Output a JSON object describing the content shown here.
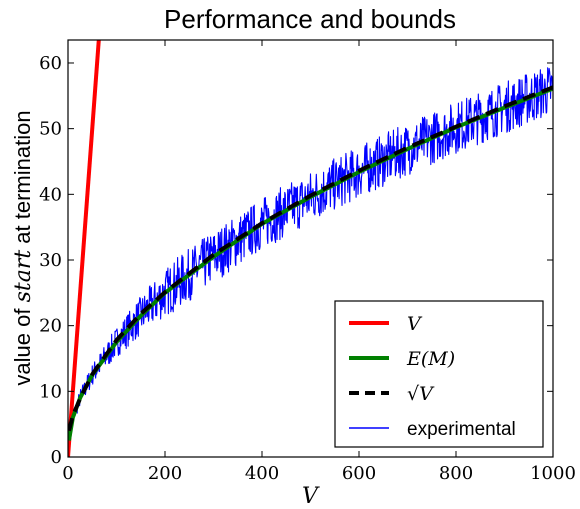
{
  "chart_data": {
    "type": "line",
    "title": "Performance and bounds",
    "xlabel": "V",
    "ylabel_prefix": "value of ",
    "ylabel_math": "start",
    "ylabel_suffix": " at termination",
    "xlim": [
      0,
      1000
    ],
    "ylim": [
      0,
      63.5
    ],
    "xticks": [
      0,
      200,
      400,
      600,
      800,
      1000
    ],
    "yticks": [
      0,
      10,
      20,
      30,
      40,
      50,
      60
    ],
    "grid": false,
    "legend_position": "lower-right",
    "series": [
      {
        "name": "V",
        "style": "solid",
        "color": "#ff0000",
        "x": [
          0,
          64
        ],
        "y": [
          0,
          64
        ]
      },
      {
        "name": "E(M)",
        "style": "solid",
        "color": "#008000",
        "x": [
          2,
          10,
          25,
          50,
          100,
          150,
          200,
          300,
          400,
          500,
          600,
          700,
          800,
          900,
          1000
        ],
        "y": [
          2.5,
          6,
          9,
          12.5,
          17.5,
          21.5,
          25,
          30.5,
          35.5,
          39.6,
          43.4,
          46.9,
          50.2,
          53.2,
          56.1
        ]
      },
      {
        "name": "√V",
        "style": "dashed",
        "color": "#000000",
        "x": [
          2,
          10,
          25,
          50,
          100,
          150,
          200,
          300,
          400,
          500,
          600,
          700,
          800,
          900,
          1000
        ],
        "y": [
          4,
          6.3,
          8.9,
          12.6,
          17.8,
          21.8,
          25.1,
          30.8,
          35.6,
          39.8,
          43.6,
          47.1,
          50.3,
          53.4,
          56.3
        ]
      },
      {
        "name": "experimental",
        "style": "noisy",
        "color": "#0000ff",
        "noise_range": [
          -4,
          4
        ],
        "x": [
          2,
          10,
          25,
          50,
          100,
          150,
          200,
          300,
          400,
          500,
          600,
          700,
          800,
          900,
          1000
        ],
        "y": [
          2.5,
          6,
          9,
          12.5,
          17.5,
          21.5,
          25,
          30.5,
          35.5,
          39.6,
          43.4,
          46.9,
          50.2,
          53.2,
          56.1
        ]
      }
    ],
    "legend": [
      {
        "label_math": "V",
        "series": 0
      },
      {
        "label_math": "E(M)",
        "series": 1
      },
      {
        "label_math": "√V",
        "series": 2
      },
      {
        "label_plain": "experimental",
        "series": 3
      }
    ]
  }
}
